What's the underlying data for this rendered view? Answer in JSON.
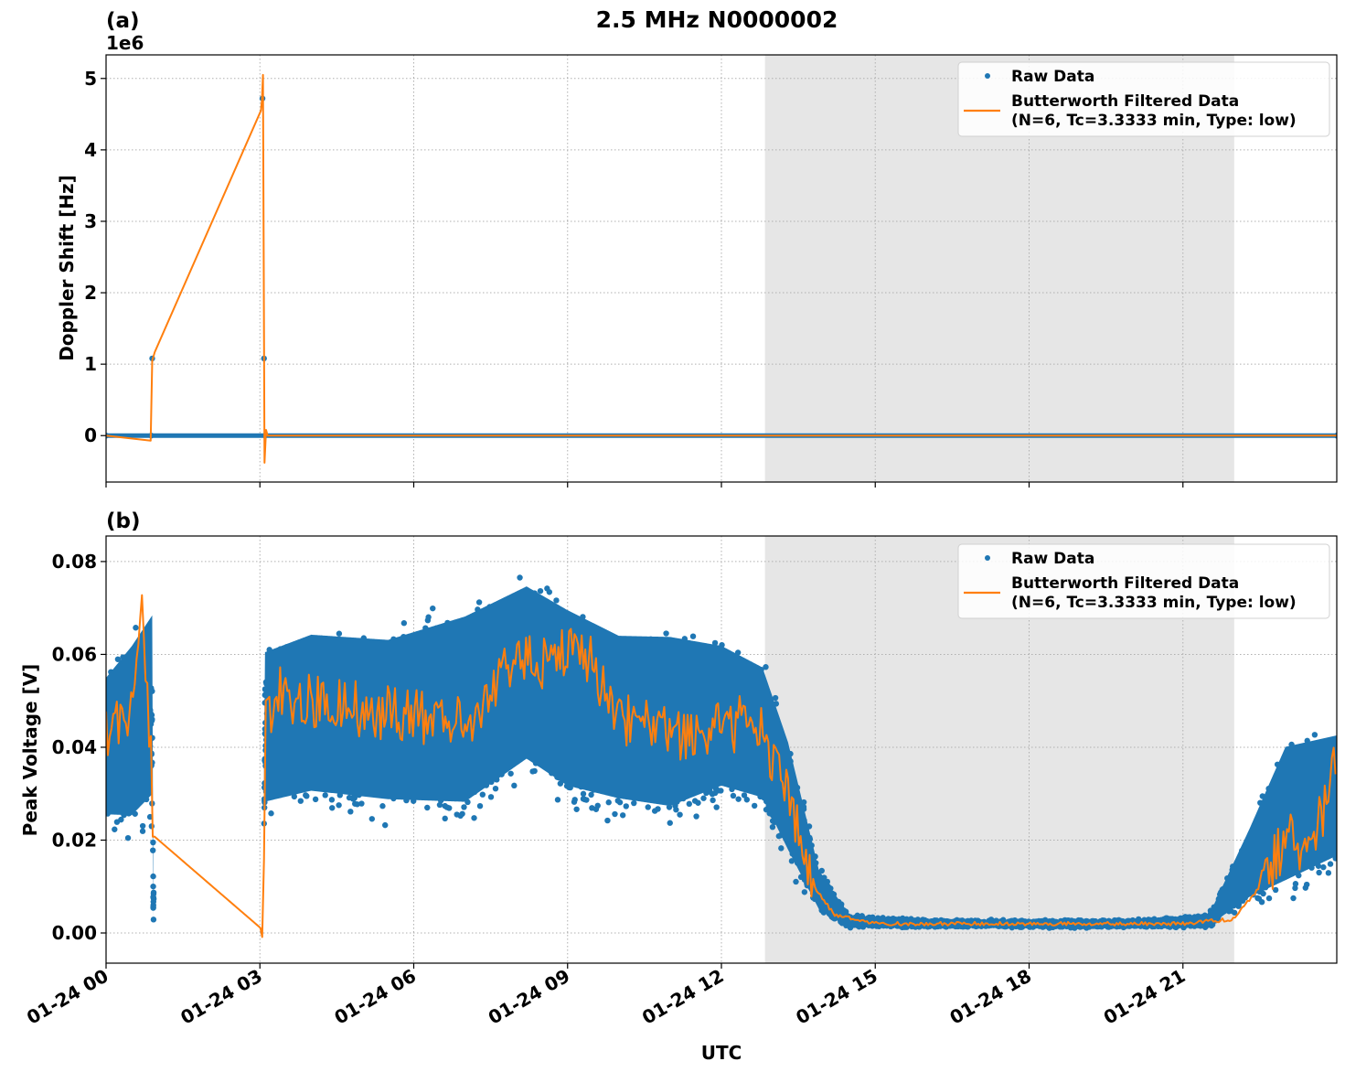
{
  "figure": {
    "title": "2.5 MHz N0000002",
    "xlabel": "UTC",
    "x_ticks": [
      "01-24 00",
      "01-24 03",
      "01-24 06",
      "01-24 09",
      "01-24 12",
      "01-24 15",
      "01-24 18",
      "01-24 21"
    ],
    "x_tick_hours": [
      0,
      3,
      6,
      9,
      12,
      15,
      18,
      21
    ],
    "x_range_hours": [
      0,
      24
    ],
    "shaded_region_hours": [
      12.85,
      22.0
    ],
    "colors": {
      "raw": "#1f77b4",
      "filtered": "#ff7f0e",
      "shade": "#e6e6e6",
      "grid": "#b0b0b0"
    }
  },
  "panels": {
    "a": {
      "label": "(a)",
      "ylabel": "Doppler Shift [Hz]",
      "offset_text": "1e6",
      "y_ticks": [
        "0",
        "1",
        "2",
        "3",
        "4",
        "5"
      ],
      "y_tick_values": [
        0,
        1,
        2,
        3,
        4,
        5
      ],
      "ylim": [
        -0.65,
        5.33
      ]
    },
    "b": {
      "label": "(b)",
      "ylabel": "Peak Voltage [V]",
      "y_ticks": [
        "0.00",
        "0.02",
        "0.04",
        "0.06",
        "0.08"
      ],
      "y_tick_values": [
        0,
        0.02,
        0.04,
        0.06,
        0.08
      ],
      "ylim": [
        -0.0065,
        0.0855
      ]
    }
  },
  "legend": {
    "raw_label": "Raw Data",
    "filtered_label_line1": "Butterworth Filtered Data",
    "filtered_label_line2": "(N=6, Tc=3.3333 min, Type: low)"
  },
  "chart_data": [
    {
      "type": "line",
      "title": "(a) 2.5 MHz N0000002",
      "xlabel": "UTC",
      "ylabel": "Doppler Shift [Hz] (x1e6)",
      "ylim": [
        -0.65,
        5.33
      ],
      "grid": true,
      "legend_position": "upper right",
      "series": [
        {
          "name": "Raw Data",
          "style": "scatter",
          "x_hours": [
            0,
            0.88,
            0.9,
            3.05,
            3.08,
            3.1,
            24
          ],
          "values": [
            0.0,
            0.0,
            1.08,
            4.72,
            1.08,
            0.0,
            0.0
          ]
        },
        {
          "name": "Butterworth Filtered Data (N=6, Tc=3.3333 min, Type: low)",
          "style": "line",
          "x_hours": [
            0,
            0.87,
            0.9,
            0.95,
            3.02,
            3.04,
            3.06,
            3.09,
            3.12,
            3.15,
            24
          ],
          "values": [
            0.0,
            -0.07,
            1.05,
            1.17,
            4.55,
            4.7,
            5.05,
            -0.38,
            0.08,
            0.0,
            0.0
          ]
        }
      ]
    },
    {
      "type": "line",
      "title": "(b)",
      "xlabel": "UTC",
      "ylabel": "Peak Voltage [V]",
      "ylim": [
        -0.0065,
        0.0855
      ],
      "grid": true,
      "legend_position": "upper right",
      "series": [
        {
          "name": "Raw Data",
          "style": "scatter_envelope",
          "x_hours": [
            0,
            0.5,
            0.9,
            0.92,
            3.05,
            3.1,
            4,
            5.5,
            7,
            8.2,
            9,
            10,
            11,
            12,
            12.8,
            13.3,
            13.9,
            14.5,
            16,
            18,
            20,
            21.5,
            22.3,
            23,
            24
          ],
          "upper": [
            0.06,
            0.068,
            0.075,
            0.012,
            0.002,
            0.066,
            0.07,
            0.069,
            0.075,
            0.081,
            0.076,
            0.07,
            0.07,
            0.067,
            0.062,
            0.045,
            0.015,
            0.004,
            0.003,
            0.003,
            0.003,
            0.004,
            0.025,
            0.045,
            0.047
          ],
          "lower": [
            0.018,
            0.016,
            0.02,
            0.001,
            0.0,
            0.02,
            0.022,
            0.02,
            0.018,
            0.028,
            0.022,
            0.02,
            0.018,
            0.024,
            0.022,
            0.012,
            0.003,
            0.001,
            0.001,
            0.001,
            0.001,
            0.001,
            0.004,
            0.004,
            0.01
          ]
        },
        {
          "name": "Butterworth Filtered Data (N=6, Tc=3.3333 min, Type: low)",
          "style": "line",
          "x_hours": [
            0,
            0.3,
            0.55,
            0.7,
            0.8,
            0.88,
            0.92,
            3.02,
            3.06,
            3.1,
            3.3,
            4,
            5,
            6,
            7,
            7.5,
            8,
            8.5,
            9,
            9.5,
            10,
            11,
            12,
            12.6,
            13,
            13.4,
            13.8,
            14.2,
            15,
            18,
            21,
            22,
            22.5,
            23,
            23.5,
            24
          ],
          "values": [
            0.044,
            0.045,
            0.05,
            0.067,
            0.05,
            0.039,
            0.021,
            0.001,
            -0.002,
            0.045,
            0.052,
            0.05,
            0.048,
            0.047,
            0.045,
            0.05,
            0.06,
            0.058,
            0.062,
            0.058,
            0.046,
            0.043,
            0.044,
            0.046,
            0.038,
            0.025,
            0.01,
            0.004,
            0.002,
            0.002,
            0.002,
            0.003,
            0.01,
            0.02,
            0.018,
            0.037
          ]
        }
      ]
    }
  ]
}
